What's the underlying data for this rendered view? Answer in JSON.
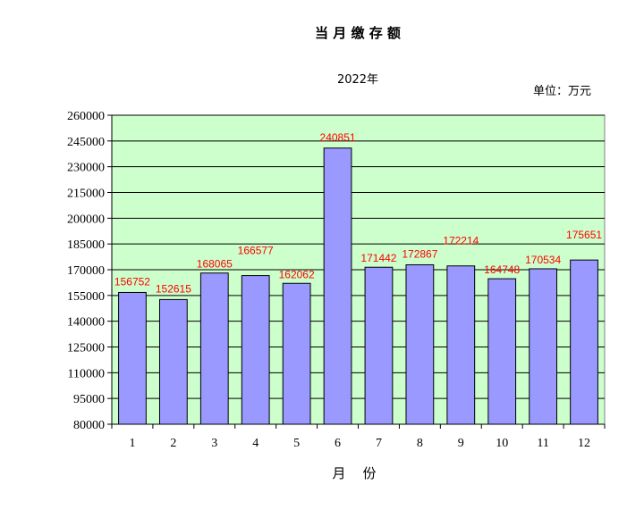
{
  "chart_data": {
    "type": "bar",
    "title": "当 月 缴 存 额",
    "subtitle": "2022年",
    "unit_note": "单位：万元",
    "xlabel": "月    份",
    "ylabel": "",
    "categories": [
      "1",
      "2",
      "3",
      "4",
      "5",
      "6",
      "7",
      "8",
      "9",
      "10",
      "11",
      "12"
    ],
    "values": [
      156752,
      152615,
      168065,
      166577,
      162062,
      240851,
      171442,
      172867,
      172214,
      164748,
      170534,
      175651
    ],
    "ylim": [
      80000,
      260000
    ],
    "yticks": [
      "80000",
      "95000",
      "110000",
      "125000",
      "140000",
      "155000",
      "170000",
      "185000",
      "200000",
      "215000",
      "230000",
      "245000",
      "260000"
    ],
    "grid": true,
    "legend": "none",
    "colors": {
      "plot_background": "#ccffcc",
      "bar_fill": "#9999ff",
      "bar_stroke": "#000000",
      "data_label": "#ff0000",
      "grid": "#000000"
    }
  }
}
